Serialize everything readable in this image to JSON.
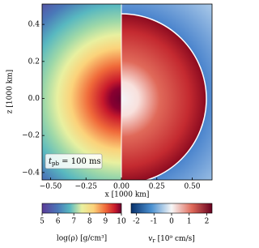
{
  "chart_data": {
    "type": "heatmap",
    "xlabel": "x [1000 km]",
    "ylabel": "z [1000 km]",
    "xlim": [
      -0.56,
      0.64
    ],
    "ylim": [
      -0.44,
      0.51
    ],
    "xticks": [
      {
        "value": -0.5,
        "label": "−0.50"
      },
      {
        "value": -0.25,
        "label": "−0.25"
      },
      {
        "value": 0,
        "label": "0.00"
      },
      0.25,
      {
        "value": 0.5,
        "label": "0.50"
      }
    ],
    "yticks": [
      {
        "value": -0.4,
        "label": "−0.4"
      },
      {
        "value": -0.2,
        "label": "−0.2"
      },
      {
        "value": 0,
        "label": "0.0"
      },
      0.2,
      0.4
    ],
    "annotation": {
      "symbol": "t",
      "subscript": "pb",
      "text": " = 100 ms"
    },
    "colorbars": [
      {
        "label": "log(ρ) [g/cm³]",
        "clim": [
          5,
          10
        ],
        "ticks": [
          5,
          6,
          7,
          8,
          9,
          10
        ]
      },
      {
        "label": {
          "symbol": "v",
          "subscript": "r",
          "text": " [10⁹ cm/s]"
        },
        "clim": [
          -2.3,
          2.3
        ],
        "ticks": [
          -2,
          -1,
          0,
          1,
          2
        ]
      }
    ]
  }
}
